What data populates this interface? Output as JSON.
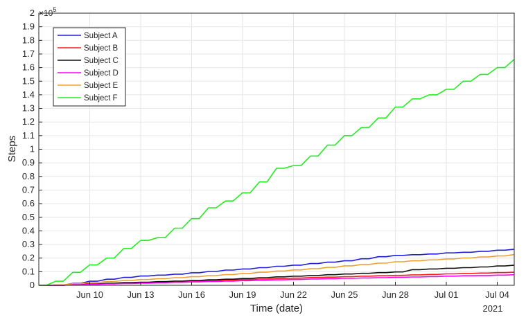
{
  "chart_data": {
    "type": "line",
    "xlabel": "Time (date)",
    "ylabel": "Steps",
    "y_exponent_label": "×10",
    "y_exponent_power": "5",
    "year_label": "2021",
    "x_range": [
      "2021-06-07",
      "2021-07-05"
    ],
    "ylim": [
      0,
      200000
    ],
    "y_ticks": [
      0,
      0.1,
      0.2,
      0.3,
      0.4,
      0.5,
      0.6,
      0.7,
      0.8,
      0.9,
      1,
      1.1,
      1.2,
      1.3,
      1.4,
      1.5,
      1.6,
      1.7,
      1.8,
      1.9,
      2
    ],
    "y_tick_labels": [
      "0",
      "0.1",
      "0.2",
      "0.3",
      "0.4",
      "0.5",
      "0.6",
      "0.7",
      "0.8",
      "0.9",
      "1",
      "1.1",
      "1.2",
      "1.3",
      "1.4",
      "1.5",
      "1.6",
      "1.7",
      "1.8",
      "1.9",
      "2"
    ],
    "x_ticks": [
      {
        "date": "2021-06-10",
        "label": "Jun 10"
      },
      {
        "date": "2021-06-13",
        "label": "Jun 13"
      },
      {
        "date": "2021-06-16",
        "label": "Jun 16"
      },
      {
        "date": "2021-06-19",
        "label": "Jun 19"
      },
      {
        "date": "2021-06-22",
        "label": "Jun 22"
      },
      {
        "date": "2021-06-25",
        "label": "Jun 25"
      },
      {
        "date": "2021-06-28",
        "label": "Jun 28"
      },
      {
        "date": "2021-07-01",
        "label": "Jul 01"
      },
      {
        "date": "2021-07-04",
        "label": "Jul 04"
      }
    ],
    "grid": true,
    "legend_position": "top-left",
    "series": [
      {
        "name": "Subject A",
        "color": "#1f1fd6",
        "x": [
          "2021-06-07",
          "2021-06-08",
          "2021-06-09",
          "2021-06-10",
          "2021-06-11",
          "2021-06-12",
          "2021-06-13",
          "2021-06-14",
          "2021-06-15",
          "2021-06-16",
          "2021-06-17",
          "2021-06-18",
          "2021-06-19",
          "2021-06-20",
          "2021-06-21",
          "2021-06-22",
          "2021-06-23",
          "2021-06-24",
          "2021-06-25",
          "2021-06-26",
          "2021-06-27",
          "2021-06-28",
          "2021-06-29",
          "2021-06-30",
          "2021-07-01",
          "2021-07-02",
          "2021-07-03",
          "2021-07-04",
          "2021-07-05"
        ],
        "y": [
          0,
          200,
          1500,
          3000,
          4500,
          5800,
          6800,
          7500,
          8200,
          9200,
          10200,
          11200,
          12000,
          13000,
          14000,
          14800,
          16000,
          17000,
          18000,
          19500,
          21000,
          22000,
          22500,
          23000,
          23800,
          24300,
          25000,
          25800,
          26500
        ]
      },
      {
        "name": "Subject B",
        "color": "#ff1a1a",
        "x": [
          "2021-06-07",
          "2021-06-08",
          "2021-06-09",
          "2021-06-10",
          "2021-06-11",
          "2021-06-12",
          "2021-06-13",
          "2021-06-14",
          "2021-06-15",
          "2021-06-16",
          "2021-06-17",
          "2021-06-18",
          "2021-06-19",
          "2021-06-20",
          "2021-06-21",
          "2021-06-22",
          "2021-06-23",
          "2021-06-24",
          "2021-06-25",
          "2021-06-26",
          "2021-06-27",
          "2021-06-28",
          "2021-06-29",
          "2021-06-30",
          "2021-07-01",
          "2021-07-02",
          "2021-07-03",
          "2021-07-04",
          "2021-07-05"
        ],
        "y": [
          0,
          0,
          500,
          800,
          1200,
          1600,
          2000,
          2400,
          2800,
          3100,
          3500,
          3900,
          4200,
          4600,
          5000,
          5300,
          5700,
          6000,
          6300,
          6700,
          7000,
          7300,
          7700,
          8000,
          8400,
          8700,
          9000,
          9300,
          9600
        ]
      },
      {
        "name": "Subject C",
        "color": "#111111",
        "x": [
          "2021-06-07",
          "2021-06-08",
          "2021-06-09",
          "2021-06-10",
          "2021-06-11",
          "2021-06-12",
          "2021-06-13",
          "2021-06-14",
          "2021-06-15",
          "2021-06-16",
          "2021-06-17",
          "2021-06-18",
          "2021-06-19",
          "2021-06-20",
          "2021-06-21",
          "2021-06-22",
          "2021-06-23",
          "2021-06-24",
          "2021-06-25",
          "2021-06-26",
          "2021-06-27",
          "2021-06-28",
          "2021-06-29",
          "2021-06-30",
          "2021-07-01",
          "2021-07-02",
          "2021-07-03",
          "2021-07-04",
          "2021-07-05"
        ],
        "y": [
          0,
          0,
          600,
          1000,
          1500,
          2000,
          2300,
          2700,
          3100,
          3500,
          4000,
          4500,
          5000,
          5600,
          6200,
          6700,
          7200,
          7800,
          8300,
          8800,
          9300,
          9800,
          11500,
          12000,
          12500,
          13000,
          13500,
          14200,
          14800
        ]
      },
      {
        "name": "Subject D",
        "color": "#ff00ff",
        "x": [
          "2021-06-07",
          "2021-06-08",
          "2021-06-09",
          "2021-06-10",
          "2021-06-11",
          "2021-06-12",
          "2021-06-13",
          "2021-06-14",
          "2021-06-15",
          "2021-06-16",
          "2021-06-17",
          "2021-06-18",
          "2021-06-19",
          "2021-06-20",
          "2021-06-21",
          "2021-06-22",
          "2021-06-23",
          "2021-06-24",
          "2021-06-25",
          "2021-06-26",
          "2021-06-27",
          "2021-06-28",
          "2021-06-29",
          "2021-06-30",
          "2021-07-01",
          "2021-07-02",
          "2021-07-03",
          "2021-07-04",
          "2021-07-05"
        ],
        "y": [
          0,
          0,
          400,
          700,
          1000,
          1300,
          1600,
          1900,
          2200,
          2500,
          2800,
          3100,
          3400,
          3700,
          4000,
          4300,
          4600,
          4900,
          5100,
          5400,
          5600,
          5900,
          6100,
          6400,
          6700,
          7000,
          7200,
          7500,
          7800
        ]
      },
      {
        "name": "Subject E",
        "color": "#f0a030",
        "x": [
          "2021-06-07",
          "2021-06-08",
          "2021-06-09",
          "2021-06-10",
          "2021-06-11",
          "2021-06-12",
          "2021-06-13",
          "2021-06-14",
          "2021-06-15",
          "2021-06-16",
          "2021-06-17",
          "2021-06-18",
          "2021-06-19",
          "2021-06-20",
          "2021-06-21",
          "2021-06-22",
          "2021-06-23",
          "2021-06-24",
          "2021-06-25",
          "2021-06-26",
          "2021-06-27",
          "2021-06-28",
          "2021-06-29",
          "2021-06-30",
          "2021-07-01",
          "2021-07-02",
          "2021-07-03",
          "2021-07-04",
          "2021-07-05"
        ],
        "y": [
          0,
          300,
          1200,
          2000,
          2800,
          3500,
          4200,
          4900,
          5600,
          6300,
          7100,
          7900,
          8700,
          9600,
          10500,
          11300,
          12200,
          13200,
          14300,
          15300,
          16300,
          17300,
          18000,
          18700,
          19400,
          20100,
          20800,
          21600,
          22600
        ]
      },
      {
        "name": "Subject F",
        "color": "#22ee22",
        "x": [
          "2021-06-07",
          "2021-06-08",
          "2021-06-09",
          "2021-06-10",
          "2021-06-11",
          "2021-06-12",
          "2021-06-13",
          "2021-06-14",
          "2021-06-15",
          "2021-06-16",
          "2021-06-17",
          "2021-06-18",
          "2021-06-19",
          "2021-06-20",
          "2021-06-21",
          "2021-06-22",
          "2021-06-23",
          "2021-06-24",
          "2021-06-25",
          "2021-06-26",
          "2021-06-27",
          "2021-06-28",
          "2021-06-29",
          "2021-06-30",
          "2021-07-01",
          "2021-07-02",
          "2021-07-03",
          "2021-07-04",
          "2021-07-05"
        ],
        "y": [
          0,
          3000,
          9500,
          15000,
          20000,
          27000,
          33000,
          35000,
          42000,
          49000,
          57000,
          62000,
          68000,
          76000,
          86000,
          88000,
          95000,
          103000,
          110000,
          116000,
          123000,
          131000,
          137000,
          140000,
          144000,
          150000,
          155000,
          160000,
          166000
        ]
      }
    ]
  }
}
